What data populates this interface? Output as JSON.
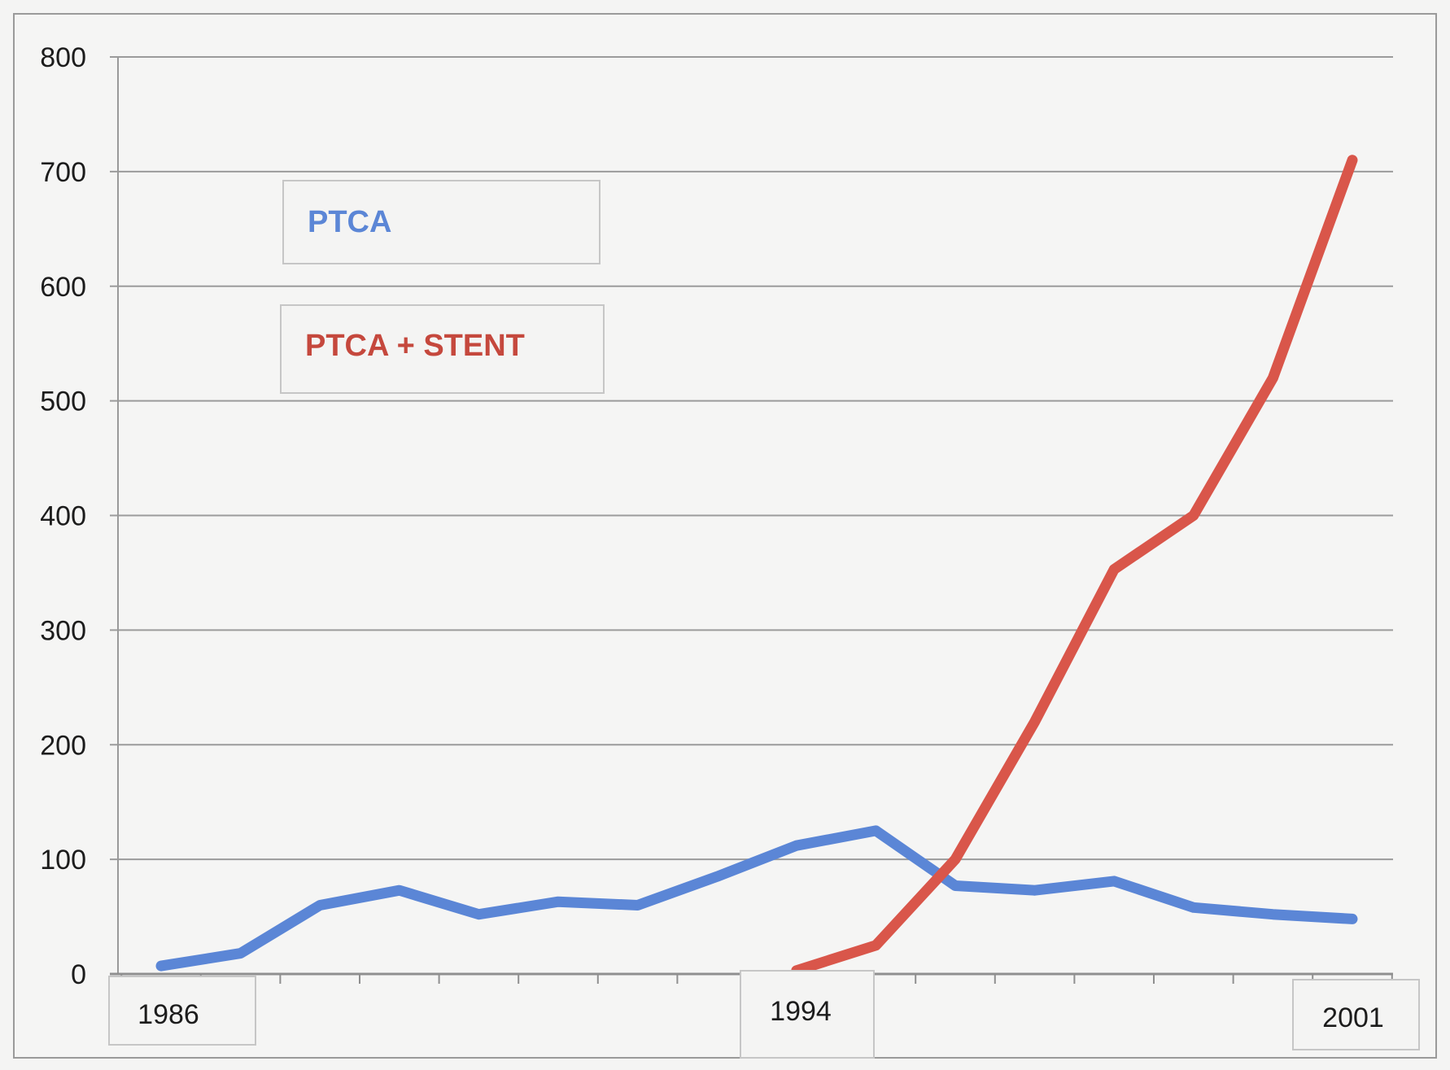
{
  "chart_data": {
    "type": "line",
    "title": "",
    "xlabel": "",
    "ylabel": "",
    "x": [
      1986,
      1987,
      1988,
      1989,
      1990,
      1991,
      1992,
      1993,
      1994,
      1995,
      1996,
      1997,
      1998,
      1999,
      2000,
      2001
    ],
    "xlim": [
      1985.5,
      2001.5
    ],
    "ylim": [
      0,
      800
    ],
    "yticks": [
      0,
      100,
      200,
      300,
      400,
      500,
      600,
      700,
      800
    ],
    "x_tick_labels": [
      "1986",
      "1994",
      "2001"
    ],
    "grid": true,
    "legend_position": "top-left",
    "series": [
      {
        "name": "PTCA",
        "color": "#5b86d6",
        "values": [
          7,
          18,
          60,
          73,
          52,
          63,
          60,
          85,
          112,
          125,
          77,
          73,
          81,
          58,
          52,
          48
        ]
      },
      {
        "name": "PTCA + STENT",
        "color": "#d9564a",
        "values": [
          null,
          null,
          null,
          null,
          null,
          null,
          null,
          null,
          3,
          25,
          100,
          220,
          353,
          400,
          520,
          710
        ]
      }
    ]
  }
}
